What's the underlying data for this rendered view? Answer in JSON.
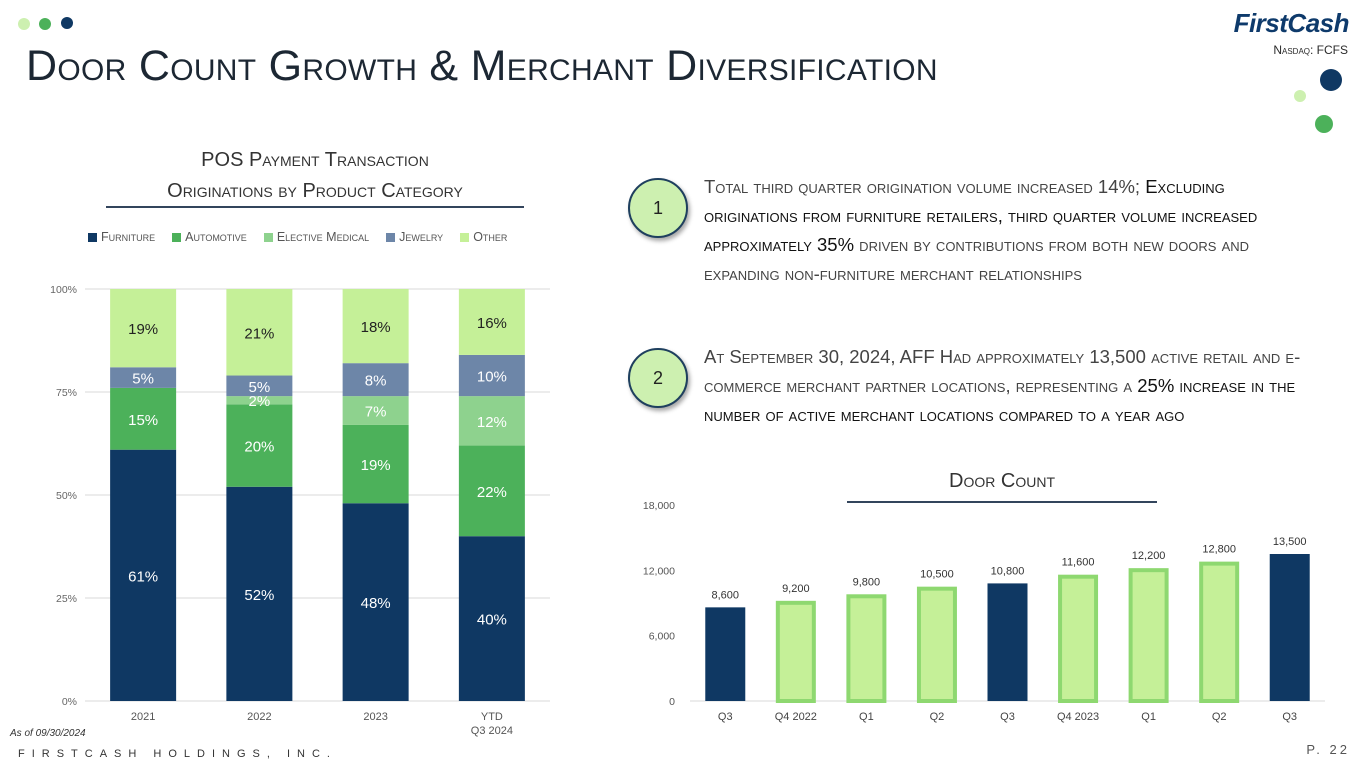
{
  "title": "Door Count Growth & Merchant Diversification",
  "logo": {
    "brand": "FirstCash",
    "ticker": "Nasdaq: FCFS"
  },
  "colors": {
    "navy": "#0f3863",
    "green": "#4cb15a",
    "light_green": "#8ed28e",
    "slate": "#6d86a8",
    "pale_green": "#c5f098"
  },
  "left_chart_heading": {
    "line1": "POS Payment Transaction",
    "line2": "Originations by Product Category"
  },
  "right_chart_heading": "Door Count",
  "bullets": [
    {
      "number": "1",
      "part1": "Total third quarter origination volume increased 14%; ",
      "part2": "Excluding originations from furniture retailers, third quarter volume increased approximately 35%",
      "part3": " driven by contributions from both new doors and expanding non-furniture merchant relationships"
    },
    {
      "number": "2",
      "part1": "At September 30, 2024, AFF Had approximately 13,500 active retail and e-commerce merchant partner locations, representing a ",
      "part2": "25% increase in the number of active merchant locations compared to a year ago",
      "part3": ""
    }
  ],
  "chart_data": [
    {
      "type": "bar",
      "stacked": true,
      "title": "POS Payment Transaction Originations by Product Category",
      "categories": [
        "2021",
        "2022",
        "2023",
        "YTD Q3 2024"
      ],
      "category_lines": [
        [
          "2021"
        ],
        [
          "2022"
        ],
        [
          "2023"
        ],
        [
          "YTD",
          "Q3 2024"
        ]
      ],
      "series": [
        {
          "name": "Furniture",
          "values": [
            61,
            52,
            48,
            40
          ]
        },
        {
          "name": "Automotive",
          "values": [
            15,
            20,
            19,
            22
          ]
        },
        {
          "name": "Elective Medical",
          "values": [
            0,
            2,
            7,
            12
          ]
        },
        {
          "name": "Jewelry",
          "values": [
            5,
            5,
            8,
            10
          ]
        },
        {
          "name": "Other",
          "values": [
            19,
            21,
            18,
            16
          ]
        }
      ],
      "ylim": [
        0,
        100
      ],
      "yticks": [
        "0%",
        "25%",
        "50%",
        "75%",
        "100%"
      ],
      "legend": "top",
      "grid": true
    },
    {
      "type": "bar",
      "title": "Door Count",
      "categories": [
        "Q3",
        "Q4 2022",
        "Q1",
        "Q2",
        "Q3",
        "Q4 2023",
        "Q1",
        "Q2",
        "Q3"
      ],
      "values": [
        8600,
        9200,
        9800,
        10500,
        10800,
        11600,
        12200,
        12800,
        13500
      ],
      "value_labels": [
        "8,600",
        "9,200",
        "9,800",
        "10,500",
        "10,800",
        "11,600",
        "12,200",
        "12,800",
        "13,500"
      ],
      "highlight": [
        true,
        false,
        false,
        false,
        true,
        false,
        false,
        false,
        true
      ],
      "ylim": [
        0,
        18000
      ],
      "yticks": [
        "0",
        "6,000",
        "12,000",
        "18,000"
      ],
      "grid": false
    }
  ],
  "footer": {
    "as_of": "As of 09/30/2024",
    "company": "FIRSTCASH HOLDINGS, INC.",
    "page": "P. 22"
  }
}
